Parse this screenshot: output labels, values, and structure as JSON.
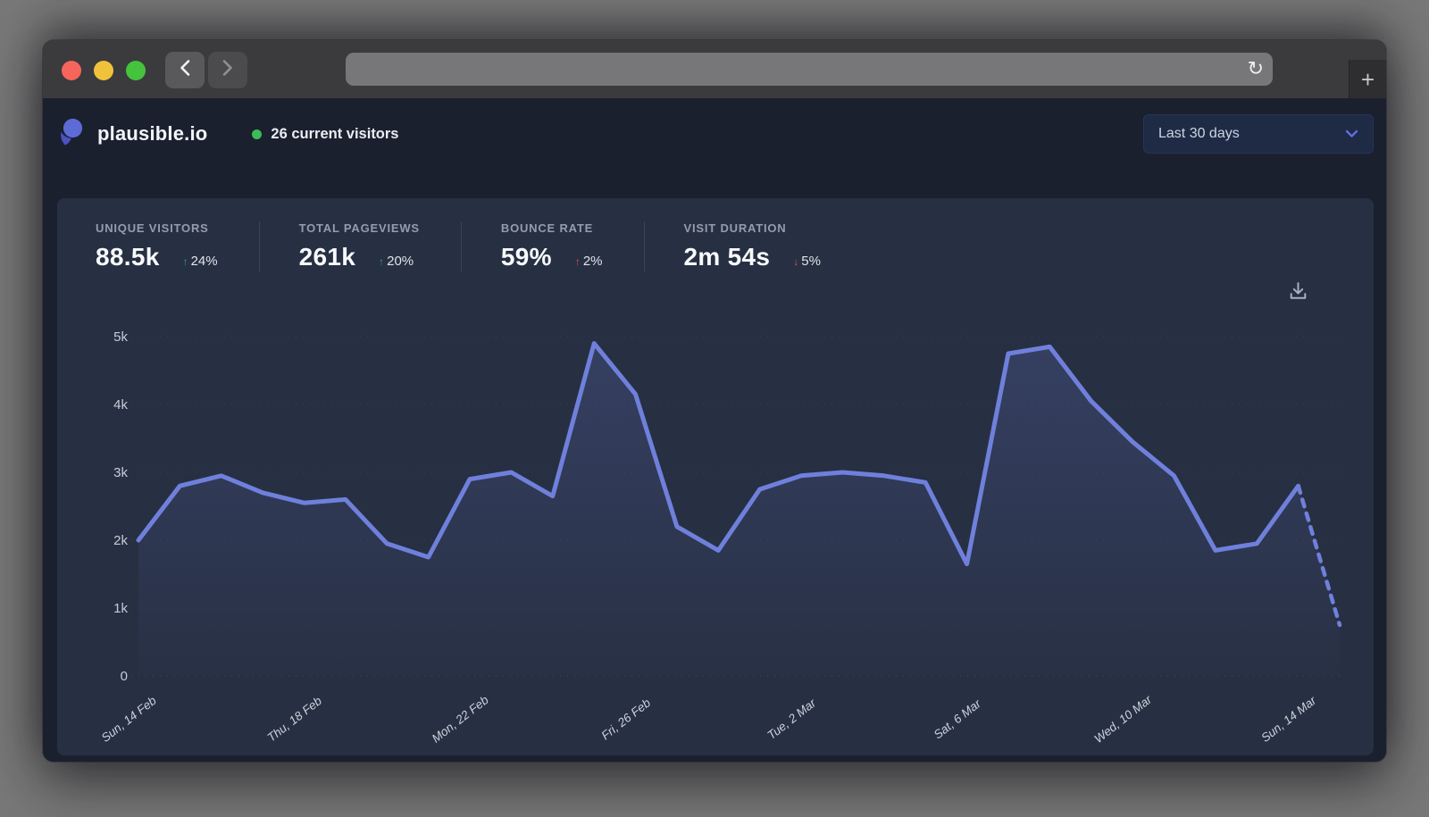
{
  "browser": {
    "reload_glyph": "↻",
    "new_tab_glyph": "+"
  },
  "header": {
    "site_name": "plausible.io",
    "current_visitors": "26 current visitors",
    "date_range_selected": "Last 30 days"
  },
  "stats": [
    {
      "label": "UNIQUE VISITORS",
      "value": "88.5k",
      "arrow_glyph": "↑",
      "change": "24%",
      "change_color": "#33a06c"
    },
    {
      "label": "TOTAL PAGEVIEWS",
      "value": "261k",
      "arrow_glyph": "↑",
      "change": "20%",
      "change_color": "#33a06c"
    },
    {
      "label": "BOUNCE RATE",
      "value": "59%",
      "arrow_glyph": "↑",
      "change": "2%",
      "change_color": "#d95550"
    },
    {
      "label": "VISIT DURATION",
      "value": "2m 54s",
      "arrow_glyph": "↓",
      "change": "5%",
      "change_color": "#d95550"
    }
  ],
  "chart_data": {
    "type": "line",
    "x_tick_labels": [
      "Sun, 14 Feb",
      "Thu, 18 Feb",
      "Mon, 22 Feb",
      "Fri, 26 Feb",
      "Tue, 2 Mar",
      "Sat, 6 Mar",
      "Wed, 10 Mar",
      "Sun, 14 Mar"
    ],
    "x_tick_indices": [
      0,
      4,
      8,
      12,
      16,
      20,
      24,
      28
    ],
    "values": [
      2000,
      2800,
      2950,
      2700,
      2550,
      2600,
      1950,
      1750,
      2900,
      3000,
      2650,
      4900,
      4150,
      2200,
      1850,
      2750,
      2950,
      3000,
      2950,
      2850,
      1650,
      4750,
      4850,
      4050,
      3450,
      2950,
      1850,
      1950,
      2800
    ],
    "dashed_tail": [
      2800,
      750
    ],
    "y_ticks": [
      {
        "value": 0,
        "label": "0"
      },
      {
        "value": 1000,
        "label": "1k"
      },
      {
        "value": 2000,
        "label": "2k"
      },
      {
        "value": 3000,
        "label": "3k"
      },
      {
        "value": 4000,
        "label": "4k"
      },
      {
        "value": 5000,
        "label": "5k"
      }
    ],
    "ylim": [
      0,
      5000
    ],
    "line_color": "#6f80dc",
    "fill_color": "#6f80dc",
    "grid": "faint-dotted-horizontal",
    "legend": "none"
  }
}
